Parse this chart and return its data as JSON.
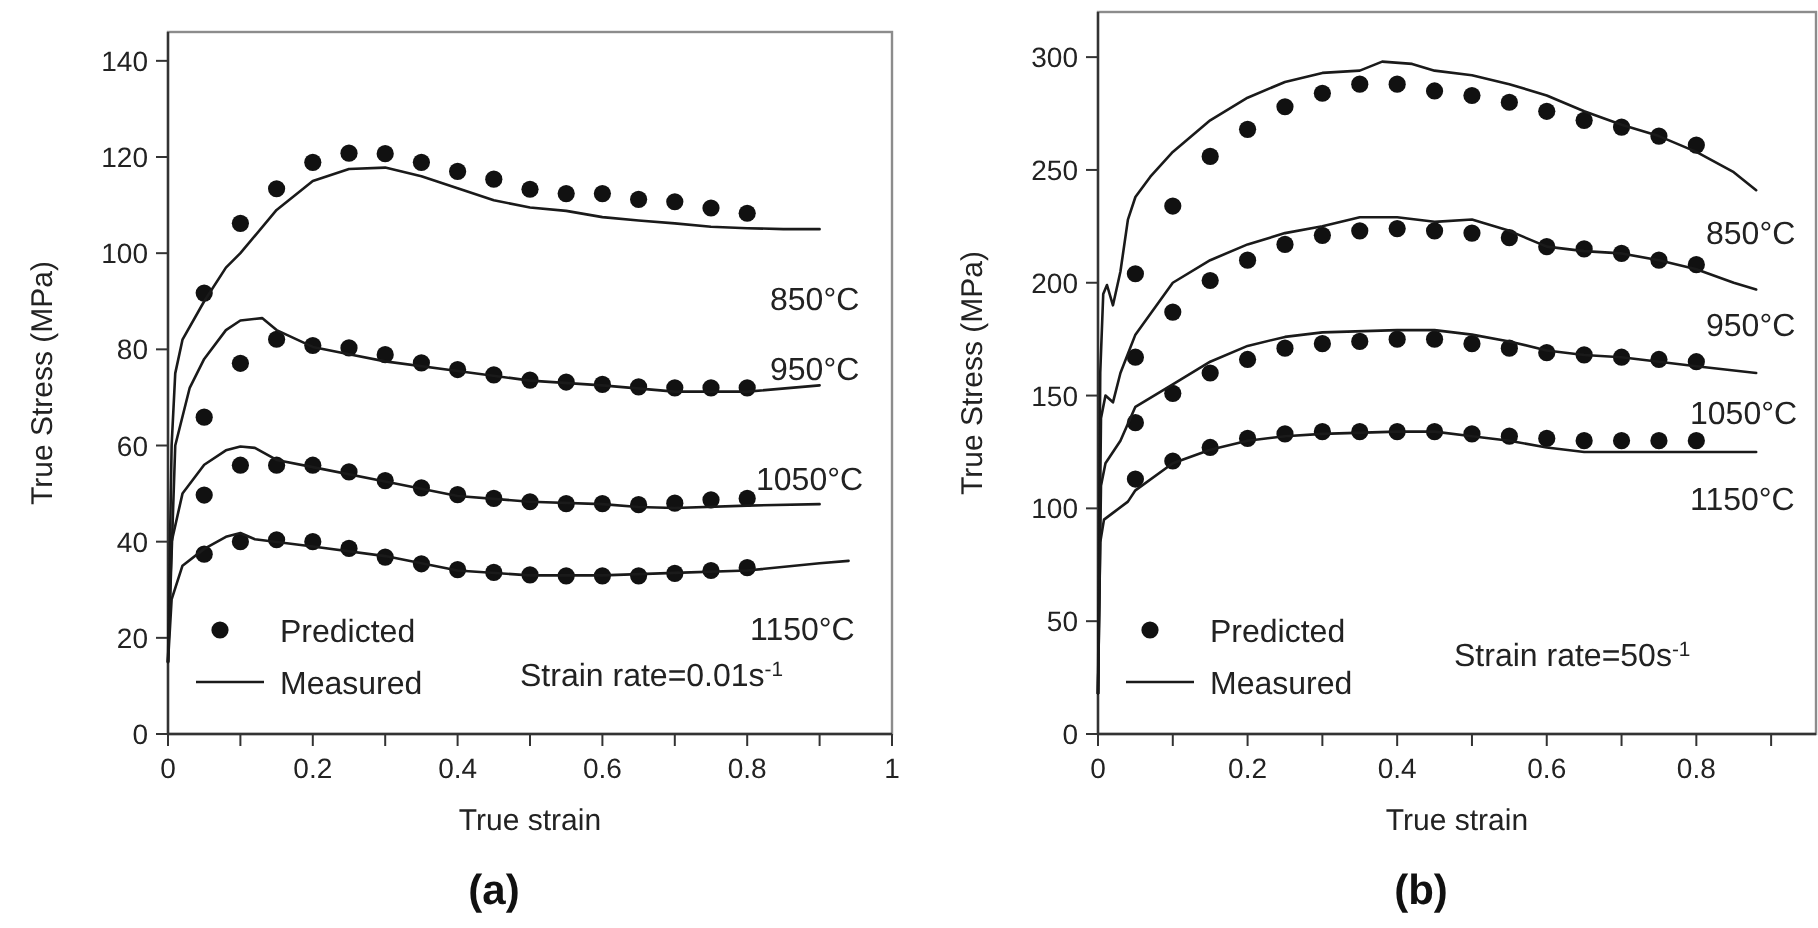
{
  "chart_data": [
    {
      "type": "line",
      "title": "(a)",
      "xlabel": "True strain",
      "ylabel": "True Stress (MPa)",
      "xlim": [
        0,
        1
      ],
      "ylim": [
        0,
        146
      ],
      "xticks": [
        0,
        {
          "value": 0.1,
          "label": null
        },
        0.2,
        {
          "value": 0.3,
          "label": null
        },
        0.4,
        {
          "value": 0.5,
          "label": null
        },
        0.6,
        {
          "value": 0.7,
          "label": null
        },
        0.8,
        {
          "value": 0.9,
          "label": null
        },
        1
      ],
      "yticks": [
        0,
        20,
        40,
        60,
        80,
        100,
        120,
        140
      ],
      "legend": "bottom left",
      "line_style": "solid",
      "annotations": [
        "850°C",
        "950°C",
        "1050°C",
        "1150°C",
        "Strain rate=0.01s$^{-1}$"
      ],
      "series": [
        {
          "type": "scatter",
          "marker": "circle",
          "name": "Predicted",
          "color": "#111111",
          "x": [
            0.05,
            0.1,
            0.15,
            0.2,
            0.25,
            0.3,
            0.35,
            0.4,
            0.45,
            0.5,
            0.55,
            0.6,
            0.65,
            0.7,
            0.75,
            0.8
          ],
          "values": [
            91.7,
            106.2,
            113.4,
            118.9,
            120.8,
            120.7,
            118.9,
            117,
            115.4,
            113.3,
            112.4,
            112.4,
            111.2,
            110.7,
            109.4,
            108.3
          ]
        },
        {
          "type": "scatter",
          "marker": "circle",
          "color": "#111111",
          "x": [
            0.05,
            0.1,
            0.15,
            0.2,
            0.25,
            0.3,
            0.35,
            0.4,
            0.45,
            0.5,
            0.55,
            0.6,
            0.65,
            0.7,
            0.75,
            0.8
          ],
          "values": [
            65.9,
            77.1,
            82.1,
            80.8,
            80.3,
            78.9,
            77.2,
            75.8,
            74.7,
            73.6,
            73.2,
            72.7,
            72.2,
            72,
            72,
            72
          ]
        },
        {
          "type": "scatter",
          "marker": "circle",
          "color": "#111111",
          "x": [
            0.05,
            0.1,
            0.15,
            0.2,
            0.25,
            0.3,
            0.35,
            0.4,
            0.45,
            0.5,
            0.55,
            0.6,
            0.65,
            0.7,
            0.75,
            0.8
          ],
          "values": [
            49.7,
            55.9,
            55.9,
            55.9,
            54.5,
            52.7,
            51.2,
            49.8,
            49,
            48.3,
            47.9,
            47.9,
            47.7,
            48,
            48.7,
            49
          ]
        },
        {
          "type": "scatter",
          "marker": "circle",
          "color": "#111111",
          "x": [
            0.05,
            0.1,
            0.15,
            0.2,
            0.25,
            0.3,
            0.35,
            0.4,
            0.45,
            0.5,
            0.55,
            0.6,
            0.65,
            0.7,
            0.75,
            0.8
          ],
          "values": [
            37.4,
            40,
            40.4,
            40,
            38.6,
            36.8,
            35.4,
            34.2,
            33.6,
            33.1,
            32.9,
            32.9,
            32.9,
            33.4,
            34,
            34.6
          ]
        },
        {
          "name": "Measured",
          "color": "#1a1a1a",
          "x": [
            0,
            0.005,
            0.01,
            0.02,
            0.05,
            0.08,
            0.1,
            0.15,
            0.2,
            0.25,
            0.3,
            0.35,
            0.4,
            0.45,
            0.5,
            0.55,
            0.6,
            0.65,
            0.7,
            0.75,
            0.8,
            0.85,
            0.9
          ],
          "values": [
            15,
            60,
            75,
            82,
            90,
            97,
            100,
            109,
            115,
            117.5,
            117.8,
            116,
            113.5,
            111,
            109.5,
            108.8,
            107.5,
            106.8,
            106.2,
            105.5,
            105.2,
            105,
            105
          ]
        },
        {
          "color": "#1a1a1a",
          "x": [
            0,
            0.01,
            0.03,
            0.05,
            0.08,
            0.1,
            0.13,
            0.15,
            0.2,
            0.25,
            0.3,
            0.4,
            0.5,
            0.6,
            0.7,
            0.8,
            0.9
          ],
          "values": [
            15,
            60,
            72,
            78,
            84,
            86,
            86.5,
            84,
            80.5,
            79,
            77.5,
            75.5,
            73.5,
            72.5,
            71.2,
            71.2,
            72.5
          ]
        },
        {
          "color": "#1a1a1a",
          "x": [
            0,
            0.005,
            0.02,
            0.05,
            0.08,
            0.1,
            0.12,
            0.15,
            0.2,
            0.3,
            0.4,
            0.5,
            0.6,
            0.65,
            0.7,
            0.8,
            0.9
          ],
          "values": [
            15,
            40,
            50,
            56,
            59,
            59.8,
            59.5,
            57,
            55.5,
            52.5,
            49.5,
            48.3,
            47.8,
            47.2,
            47,
            47.5,
            47.8
          ]
        },
        {
          "color": "#1a1a1a",
          "x": [
            0,
            0.005,
            0.02,
            0.05,
            0.08,
            0.1,
            0.12,
            0.2,
            0.3,
            0.35,
            0.4,
            0.5,
            0.6,
            0.7,
            0.8,
            0.9,
            0.94
          ],
          "values": [
            15,
            28,
            35,
            38.5,
            41,
            41.8,
            40.5,
            39,
            37,
            35.5,
            34,
            33,
            33,
            33.5,
            34,
            35.5,
            36
          ]
        }
      ]
    },
    {
      "type": "line",
      "title": "(b)",
      "xlabel": "True strain",
      "ylabel": "True Stress (MPa)",
      "xlim": [
        0,
        0.96
      ],
      "ylim": [
        0,
        320
      ],
      "xticks": [
        0,
        {
          "value": 0.1,
          "label": null
        },
        0.2,
        {
          "value": 0.3,
          "label": null
        },
        0.4,
        {
          "value": 0.5,
          "label": null
        },
        0.6,
        {
          "value": 0.7,
          "label": null
        },
        0.8,
        {
          "value": 0.9,
          "label": null
        }
      ],
      "yticks": [
        0,
        50,
        100,
        150,
        200,
        250,
        300
      ],
      "legend": "bottom left",
      "line_style": "solid",
      "annotations": [
        "850°C",
        "950°C",
        "1050°C",
        "1150°C",
        "Strain rate=50s$^{-1}$"
      ],
      "series": [
        {
          "type": "scatter",
          "marker": "circle",
          "name": "Predicted",
          "color": "#111111",
          "x": [
            0.05,
            0.1,
            0.15,
            0.2,
            0.25,
            0.3,
            0.35,
            0.4,
            0.45,
            0.5,
            0.55,
            0.6,
            0.65,
            0.7,
            0.75,
            0.8
          ],
          "values": [
            204,
            234,
            256,
            268,
            278,
            284,
            288,
            288,
            285,
            283,
            280,
            276,
            272,
            269,
            265,
            261
          ]
        },
        {
          "type": "scatter",
          "marker": "circle",
          "color": "#111111",
          "x": [
            0.05,
            0.1,
            0.15,
            0.2,
            0.25,
            0.3,
            0.35,
            0.4,
            0.45,
            0.5,
            0.55,
            0.6,
            0.65,
            0.7,
            0.75,
            0.8
          ],
          "values": [
            167,
            187,
            201,
            210,
            217,
            221,
            223,
            224,
            223,
            222,
            220,
            216,
            215,
            213,
            210,
            208
          ]
        },
        {
          "type": "scatter",
          "marker": "circle",
          "color": "#111111",
          "x": [
            0.05,
            0.1,
            0.15,
            0.2,
            0.25,
            0.3,
            0.35,
            0.4,
            0.45,
            0.5,
            0.55,
            0.6,
            0.65,
            0.7,
            0.75,
            0.8
          ],
          "values": [
            138,
            151,
            160,
            166,
            171,
            173,
            174,
            175,
            175,
            173,
            171,
            169,
            168,
            167,
            166,
            165
          ]
        },
        {
          "type": "scatter",
          "marker": "circle",
          "color": "#111111",
          "x": [
            0.05,
            0.1,
            0.15,
            0.2,
            0.25,
            0.3,
            0.35,
            0.4,
            0.45,
            0.5,
            0.55,
            0.6,
            0.65,
            0.7,
            0.75,
            0.8
          ],
          "values": [
            113,
            121,
            127,
            131,
            133,
            134,
            134,
            134,
            134,
            133,
            132,
            131,
            130,
            130,
            130,
            130
          ]
        },
        {
          "name": "Measured",
          "color": "#1a1a1a",
          "x": [
            0,
            0.003,
            0.007,
            0.012,
            0.02,
            0.03,
            0.04,
            0.05,
            0.07,
            0.1,
            0.15,
            0.2,
            0.25,
            0.3,
            0.35,
            0.38,
            0.42,
            0.45,
            0.5,
            0.55,
            0.6,
            0.65,
            0.7,
            0.75,
            0.8,
            0.85,
            0.88
          ],
          "values": [
            18,
            160,
            195,
            199,
            190,
            205,
            228,
            238,
            247,
            258,
            272,
            282,
            289,
            293,
            294,
            298,
            297,
            294,
            292,
            288,
            283,
            276,
            270,
            265,
            258,
            249,
            241
          ]
        },
        {
          "color": "#1a1a1a",
          "x": [
            0,
            0.004,
            0.01,
            0.02,
            0.03,
            0.05,
            0.1,
            0.15,
            0.2,
            0.25,
            0.3,
            0.35,
            0.4,
            0.45,
            0.5,
            0.55,
            0.6,
            0.65,
            0.7,
            0.75,
            0.8,
            0.85,
            0.88
          ],
          "values": [
            18,
            140,
            150,
            147,
            160,
            177,
            200,
            210,
            217,
            222,
            225,
            229,
            229,
            227,
            228,
            223,
            216,
            214,
            213,
            210,
            206,
            200,
            197
          ]
        },
        {
          "color": "#1a1a1a",
          "x": [
            0,
            0.004,
            0.01,
            0.03,
            0.05,
            0.1,
            0.15,
            0.2,
            0.25,
            0.3,
            0.4,
            0.45,
            0.5,
            0.55,
            0.6,
            0.65,
            0.7,
            0.75,
            0.8,
            0.88
          ],
          "values": [
            18,
            110,
            120,
            130,
            145,
            155,
            165,
            172,
            176,
            178,
            179,
            179,
            177,
            174,
            170,
            168,
            167,
            165,
            163,
            160
          ]
        },
        {
          "color": "#1a1a1a",
          "x": [
            0,
            0.003,
            0.008,
            0.02,
            0.04,
            0.05,
            0.1,
            0.15,
            0.2,
            0.25,
            0.3,
            0.4,
            0.45,
            0.5,
            0.55,
            0.6,
            0.65,
            0.75,
            0.88
          ],
          "values": [
            18,
            85,
            95,
            98,
            103,
            108,
            120,
            126,
            130,
            132,
            133,
            134,
            134,
            132,
            130,
            127,
            125,
            125,
            125
          ]
        }
      ]
    }
  ]
}
